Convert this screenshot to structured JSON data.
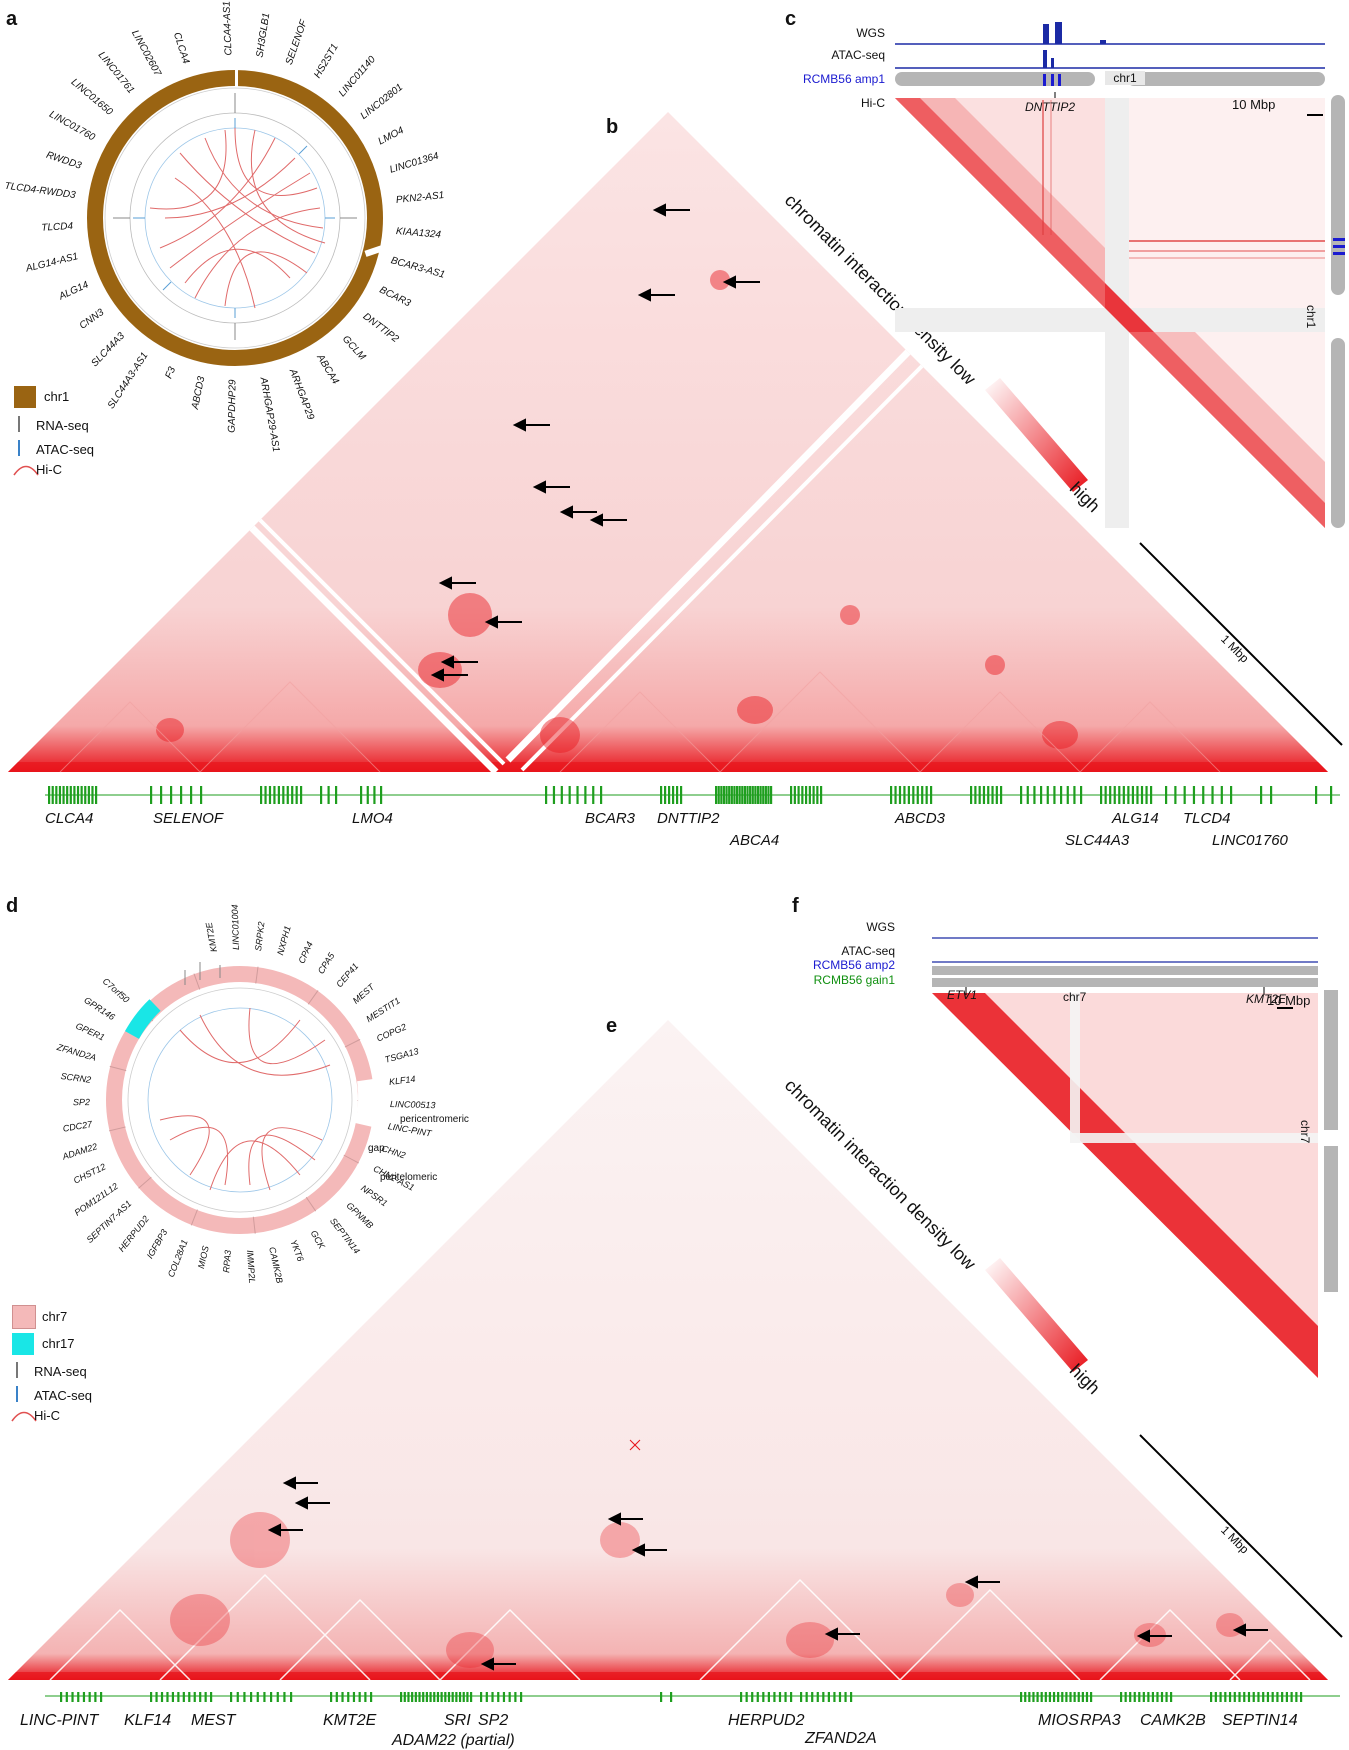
{
  "panels": {
    "a": "a",
    "b": "b",
    "c": "c",
    "d": "d",
    "e": "e",
    "f": "f"
  },
  "colors": {
    "hic_red": "#e8141b",
    "chr1_brown": "#9a6412",
    "chr7_pink": "#f4b9b9",
    "chr17_cyan": "#19e6e6",
    "gene_green": "#1e9e1e",
    "wgs_blue": "#1b2aa5",
    "amp_blue": "#1a1ad0",
    "gain_green": "#109010"
  },
  "panel_a": {
    "legend": [
      "chr1",
      "RNA-seq",
      "ATAC-seq",
      "Hi-C"
    ],
    "circos_genes": [
      "CLCA4-AS1",
      "SH3GLB1",
      "SELENOF",
      "HS2ST1",
      "LINC01140",
      "LINC02801",
      "LMO4",
      "LINC01364",
      "PKN2-AS1",
      "KIAA1324",
      "BCAR3-AS1",
      "BCAR3",
      "DNTTIP2",
      "GCLM",
      "ABCA4",
      "ARHGAP29",
      "ARHGAP29-AS1",
      "GAPDHP29",
      "ABCD3",
      "F3",
      "SLC44A3-AS1",
      "SLC44A3",
      "CNN3",
      "ALG14",
      "ALG14-AS1",
      "TLCD4",
      "TLCD4-RWDD3",
      "RWDD3",
      "LINC01760",
      "LINC01650",
      "LINC01761",
      "LINC02607",
      "CLCA4"
    ]
  },
  "panel_b": {
    "density_label": "chromatin interaction density low",
    "density_high": "high",
    "scale": "1 Mbp",
    "genes": [
      "CLCA4",
      "SELENOF",
      "LMO4",
      "BCAR3",
      "DNTTIP2",
      "ABCA4",
      "ABCD3",
      "SLC44A3",
      "ALG14",
      "TLCD4",
      "LINC01760"
    ]
  },
  "panel_c": {
    "tracks": [
      "WGS",
      "ATAC-seq",
      "RCMB56 amp1",
      "Hi-C"
    ],
    "chrom": "chr1",
    "gene": "DNTTIP2",
    "scale": "10 Mbp"
  },
  "panel_d": {
    "legend": [
      "chr7",
      "chr17",
      "RNA-seq",
      "ATAC-seq",
      "Hi-C"
    ],
    "circos_labels": [
      "pericentromeric",
      "gap",
      "peritelomeric"
    ],
    "circos_genes": [
      "KMT2E",
      "LINC01004",
      "SRPK2",
      "NXPH1",
      "CPA4",
      "CPA5",
      "CEP41",
      "MEST",
      "MESTIT1",
      "COPG2",
      "TSGA13",
      "KLF14",
      "LINC00513",
      "LINC-PINT",
      "CHN2",
      "CHN2-AS1",
      "NPSR1",
      "GPNMB",
      "SEPTIN14",
      "GCK",
      "YKT6",
      "CAMK2B",
      "IMMP2L",
      "RPA3",
      "MIOS",
      "COL28A1",
      "IGFBP3",
      "HERPUD2",
      "SEPTIN7-AS1",
      "POM121L12",
      "CHST12",
      "ADAM22",
      "CDC27",
      "SP2",
      "SCRN2",
      "ZFAND2A",
      "GPER1",
      "GPR146",
      "C7orf50"
    ]
  },
  "panel_e": {
    "density_label": "chromatin interaction density low",
    "density_high": "high",
    "scale": "1 Mbp",
    "genes": [
      "LINC-PINT",
      "KLF14",
      "MEST",
      "KMT2E",
      "SRI",
      "SP2",
      "ADAM22 (partial)",
      "HERPUD2",
      "ZFAND2A",
      "MIOS",
      "RPA3",
      "CAMK2B",
      "SEPTIN14"
    ]
  },
  "panel_f": {
    "tracks": [
      "WGS",
      "ATAC-seq",
      "RCMB56 amp2",
      "RCMB56 gain1"
    ],
    "chrom": "chr7",
    "genes": [
      "ETV1",
      "KMT2E"
    ],
    "scale": "10 Mbp"
  }
}
